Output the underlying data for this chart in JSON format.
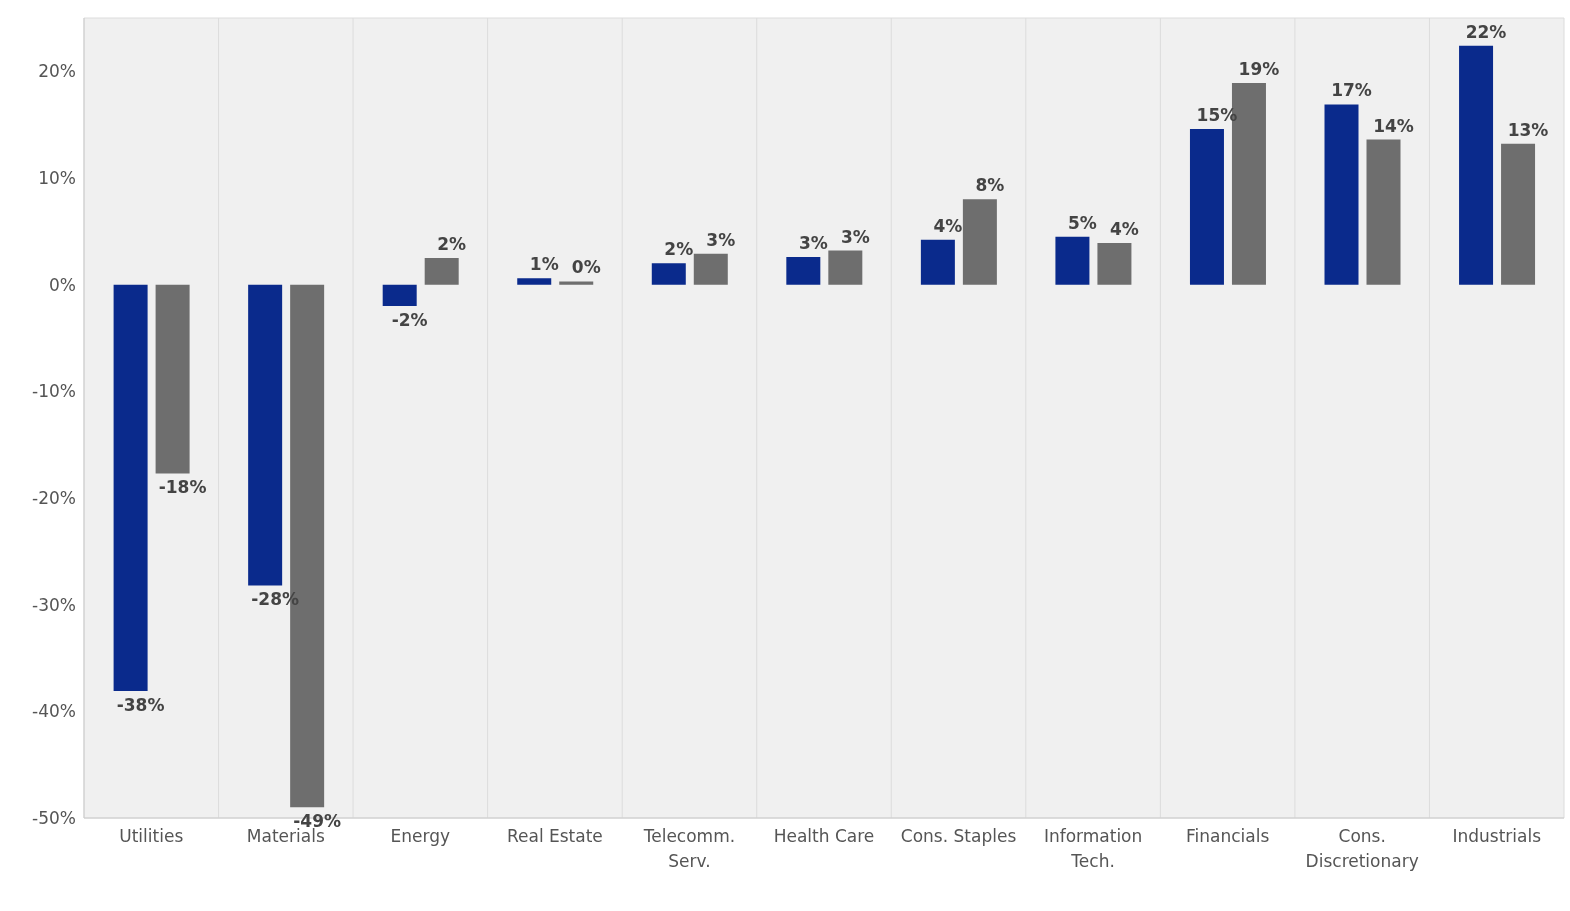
{
  "chart_data": {
    "type": "bar",
    "categories": [
      "Utilities",
      "Materials",
      "Energy",
      "Real Estate",
      "Telecomm. Serv.",
      "Health Care",
      "Cons. Staples",
      "Information Tech.",
      "Financials",
      "Cons. Discretionary",
      "Industrials"
    ],
    "series": [
      {
        "color": "#0a2a8c",
        "values": [
          -38.1,
          -28.2,
          -2.0,
          0.6,
          2.0,
          2.6,
          4.2,
          4.5,
          14.6,
          16.9,
          22.4
        ],
        "value_labels": [
          "-38%",
          "-28%",
          "-2%",
          "1%",
          "2%",
          "3%",
          "4%",
          "5%",
          "15%",
          "17%",
          "22%"
        ]
      },
      {
        "color": "#6e6e6e",
        "values": [
          -17.7,
          -49.0,
          2.5,
          0.3,
          2.9,
          3.2,
          8.0,
          3.9,
          18.9,
          13.6,
          13.2
        ],
        "value_labels": [
          "-18%",
          "-49%",
          "2%",
          "0%",
          "3%",
          "3%",
          "8%",
          "4%",
          "19%",
          "14%",
          "13%"
        ]
      }
    ],
    "ylim": [
      -50,
      25
    ],
    "yticks": [
      {
        "value": -50,
        "label": "-50%"
      },
      {
        "value": -40,
        "label": "-40%"
      },
      {
        "value": -30,
        "label": "-30%"
      },
      {
        "value": -20,
        "label": "-20%"
      },
      {
        "value": -10,
        "label": "-10%"
      },
      {
        "value": 0,
        "label": "0%"
      },
      {
        "value": 10,
        "label": "10%"
      },
      {
        "value": 20,
        "label": "20%"
      }
    ],
    "grid": true
  }
}
